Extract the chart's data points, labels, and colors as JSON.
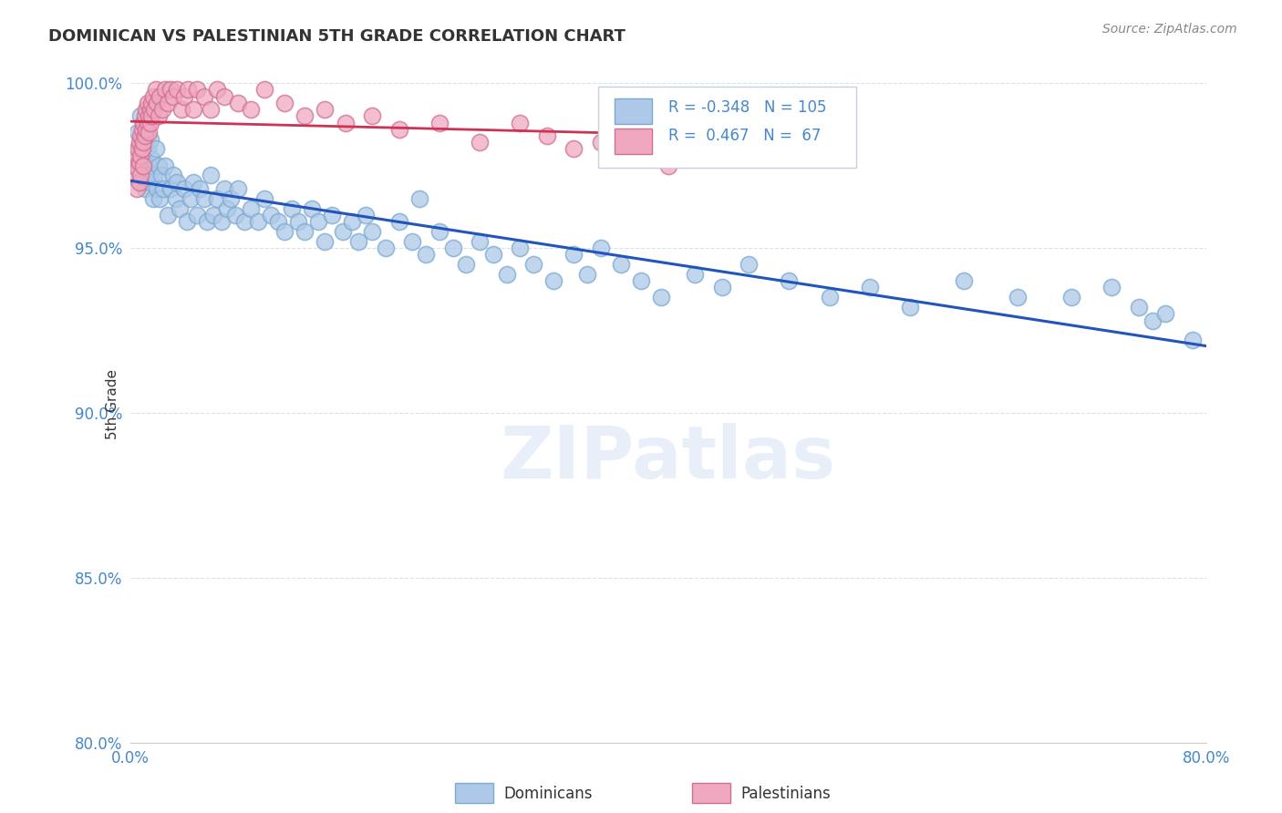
{
  "title": "DOMINICAN VS PALESTINIAN 5TH GRADE CORRELATION CHART",
  "source": "Source: ZipAtlas.com",
  "ylabel": "5th Grade",
  "xlim": [
    0.0,
    0.8
  ],
  "ylim": [
    0.8,
    1.005
  ],
  "yticks": [
    0.8,
    0.85,
    0.9,
    0.95,
    1.0
  ],
  "ytick_labels": [
    "80.0%",
    "85.0%",
    "90.0%",
    "95.0%",
    "100.0%"
  ],
  "xticks": [
    0.0,
    0.2,
    0.4,
    0.6,
    0.8
  ],
  "xtick_labels": [
    "0.0%",
    "",
    "",
    "",
    "80.0%"
  ],
  "r_dominican": -0.348,
  "n_dominican": 105,
  "r_palestinian": 0.467,
  "n_palestinian": 67,
  "dominican_color": "#adc8e8",
  "palestinian_color": "#f0a8c0",
  "dominican_line_color": "#2255bb",
  "palestinian_line_color": "#cc3355",
  "background_color": "#ffffff",
  "title_color": "#333333",
  "axis_label_color": "#333333",
  "tick_color": "#4488cc",
  "grid_color": "#d8e0ec",
  "dominican_x": [
    0.003,
    0.005,
    0.006,
    0.007,
    0.008,
    0.008,
    0.009,
    0.009,
    0.01,
    0.01,
    0.011,
    0.011,
    0.012,
    0.012,
    0.013,
    0.014,
    0.015,
    0.015,
    0.016,
    0.017,
    0.018,
    0.019,
    0.02,
    0.021,
    0.022,
    0.023,
    0.025,
    0.026,
    0.028,
    0.03,
    0.032,
    0.034,
    0.035,
    0.037,
    0.04,
    0.042,
    0.045,
    0.047,
    0.05,
    0.052,
    0.055,
    0.057,
    0.06,
    0.062,
    0.065,
    0.068,
    0.07,
    0.072,
    0.075,
    0.078,
    0.08,
    0.085,
    0.09,
    0.095,
    0.1,
    0.105,
    0.11,
    0.115,
    0.12,
    0.125,
    0.13,
    0.135,
    0.14,
    0.145,
    0.15,
    0.158,
    0.165,
    0.17,
    0.175,
    0.18,
    0.19,
    0.2,
    0.21,
    0.215,
    0.22,
    0.23,
    0.24,
    0.25,
    0.26,
    0.27,
    0.28,
    0.29,
    0.3,
    0.315,
    0.33,
    0.34,
    0.35,
    0.365,
    0.38,
    0.395,
    0.42,
    0.44,
    0.46,
    0.49,
    0.52,
    0.55,
    0.58,
    0.62,
    0.66,
    0.7,
    0.73,
    0.75,
    0.76,
    0.77,
    0.79
  ],
  "dominican_y": [
    0.978,
    0.975,
    0.985,
    0.98,
    0.99,
    0.975,
    0.982,
    0.978,
    0.97,
    0.988,
    0.975,
    0.968,
    0.985,
    0.972,
    0.98,
    0.975,
    0.97,
    0.983,
    0.977,
    0.965,
    0.972,
    0.98,
    0.968,
    0.975,
    0.965,
    0.972,
    0.968,
    0.975,
    0.96,
    0.968,
    0.972,
    0.965,
    0.97,
    0.962,
    0.968,
    0.958,
    0.965,
    0.97,
    0.96,
    0.968,
    0.965,
    0.958,
    0.972,
    0.96,
    0.965,
    0.958,
    0.968,
    0.962,
    0.965,
    0.96,
    0.968,
    0.958,
    0.962,
    0.958,
    0.965,
    0.96,
    0.958,
    0.955,
    0.962,
    0.958,
    0.955,
    0.962,
    0.958,
    0.952,
    0.96,
    0.955,
    0.958,
    0.952,
    0.96,
    0.955,
    0.95,
    0.958,
    0.952,
    0.965,
    0.948,
    0.955,
    0.95,
    0.945,
    0.952,
    0.948,
    0.942,
    0.95,
    0.945,
    0.94,
    0.948,
    0.942,
    0.95,
    0.945,
    0.94,
    0.935,
    0.942,
    0.938,
    0.945,
    0.94,
    0.935,
    0.938,
    0.932,
    0.94,
    0.935,
    0.935,
    0.938,
    0.932,
    0.928,
    0.93,
    0.922
  ],
  "palestinian_x": [
    0.003,
    0.004,
    0.005,
    0.005,
    0.006,
    0.006,
    0.007,
    0.007,
    0.007,
    0.008,
    0.008,
    0.008,
    0.009,
    0.009,
    0.01,
    0.01,
    0.01,
    0.011,
    0.011,
    0.012,
    0.012,
    0.013,
    0.013,
    0.014,
    0.014,
    0.015,
    0.015,
    0.016,
    0.016,
    0.017,
    0.018,
    0.019,
    0.02,
    0.021,
    0.022,
    0.024,
    0.026,
    0.028,
    0.03,
    0.032,
    0.035,
    0.038,
    0.04,
    0.043,
    0.047,
    0.05,
    0.055,
    0.06,
    0.065,
    0.07,
    0.08,
    0.09,
    0.1,
    0.115,
    0.13,
    0.145,
    0.16,
    0.18,
    0.2,
    0.23,
    0.26,
    0.29,
    0.31,
    0.33,
    0.35,
    0.38,
    0.4
  ],
  "palestinian_y": [
    0.975,
    0.972,
    0.978,
    0.968,
    0.98,
    0.974,
    0.982,
    0.976,
    0.97,
    0.984,
    0.978,
    0.972,
    0.986,
    0.98,
    0.988,
    0.982,
    0.975,
    0.99,
    0.984,
    0.992,
    0.986,
    0.988,
    0.994,
    0.99,
    0.985,
    0.992,
    0.988,
    0.994,
    0.99,
    0.996,
    0.992,
    0.998,
    0.994,
    0.99,
    0.996,
    0.992,
    0.998,
    0.994,
    0.998,
    0.996,
    0.998,
    0.992,
    0.996,
    0.998,
    0.992,
    0.998,
    0.996,
    0.992,
    0.998,
    0.996,
    0.994,
    0.992,
    0.998,
    0.994,
    0.99,
    0.992,
    0.988,
    0.99,
    0.986,
    0.988,
    0.982,
    0.988,
    0.984,
    0.98,
    0.982,
    0.978,
    0.975
  ]
}
